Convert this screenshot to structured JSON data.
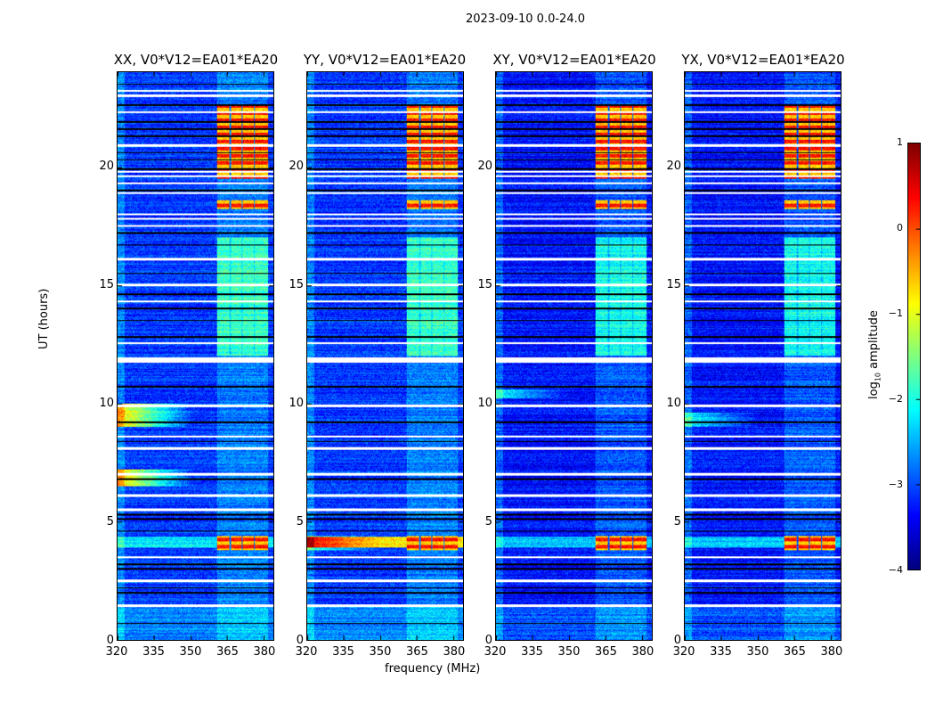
{
  "chart_data": {
    "type": "heatmap",
    "title": "2023-09-10 0.0-24.0",
    "xlabel": "frequency (MHz)",
    "ylabel": "UT (hours)",
    "xlim": [
      320,
      384
    ],
    "ylim": [
      0,
      24
    ],
    "xticks": [
      "320",
      "335",
      "350",
      "365",
      "380"
    ],
    "yticks": [
      "0",
      "5",
      "10",
      "15",
      "20"
    ],
    "colorbar": {
      "label": "log10 amplitude",
      "label_main": "log",
      "label_sub": "10",
      "label_rest": " amplitude",
      "range": [
        -4,
        1
      ],
      "ticks": [
        "1",
        "0",
        "−1",
        "−2",
        "−3",
        "−4"
      ],
      "colormap": "jet"
    },
    "panels": [
      {
        "title": "XX, V0*V12=EA01*EA20",
        "baseline_level": -3.1,
        "low_freq_rfi_hours": [
          [
            9.0,
            10.0
          ],
          [
            6.5,
            7.2
          ]
        ]
      },
      {
        "title": "YY, V0*V12=EA01*EA20",
        "baseline_level": -3.1,
        "low_freq_rfi_hours": [
          [
            3.8,
            4.4
          ]
        ]
      },
      {
        "title": "XY, V0*V12=EA01*EA20",
        "baseline_level": -3.3,
        "low_freq_rfi_hours": [
          [
            10.2,
            10.6
          ]
        ]
      },
      {
        "title": "YX, V0*V12=EA01*EA20",
        "baseline_level": -3.3,
        "low_freq_rfi_hours": [
          [
            9.0,
            9.6
          ]
        ]
      }
    ],
    "rfi_band_mhz": [
      361,
      382
    ],
    "rfi_subband_edges_mhz": [
      [
        361,
        366
      ],
      [
        366.5,
        371
      ],
      [
        371.5,
        376
      ],
      [
        376.5,
        382
      ]
    ],
    "strong_rfi_hours": [
      [
        3.8,
        4.4
      ],
      [
        18.2,
        18.6
      ],
      [
        19.5,
        22.6
      ]
    ],
    "moderate_rfi_hours": [
      [
        12.0,
        17.0
      ],
      [
        16.3,
        17.0
      ]
    ],
    "flagged_hours": [
      1.45,
      11.75,
      11.85,
      12.55,
      14.3,
      15.0,
      16.1,
      17.5,
      17.8,
      18.0,
      18.9,
      19.3,
      19.6,
      19.8,
      20.9,
      22.3,
      23.0,
      23.2,
      7.0,
      8.1,
      8.6,
      6.1,
      5.5,
      3.5,
      2.5,
      9.9
    ],
    "dark_hours": [
      0.7,
      2.0,
      2.2,
      3.0,
      3.2,
      4.6,
      5.1,
      5.3,
      6.8,
      8.4,
      9.2,
      10.7,
      12.8,
      13.5,
      14.0,
      14.6,
      15.5,
      16.7,
      17.2,
      19.0,
      19.9,
      20.3,
      20.6,
      21.3,
      21.6,
      21.9,
      22.6,
      23.5
    ]
  }
}
